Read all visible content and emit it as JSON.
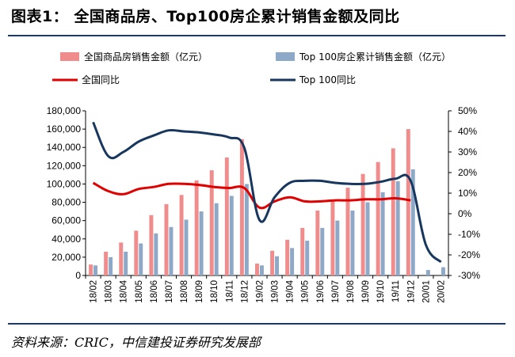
{
  "header": {
    "title": "图表1：   全国商品房、Top100房企累计销售金额及同比"
  },
  "footer": {
    "source": "资料来源：CRIC，中信建投证券研究发展部"
  },
  "colors": {
    "national_bar": "#f08c8c",
    "top100_bar": "#8ea9c8",
    "national_line": "#e00000",
    "top100_line": "#17375e"
  },
  "chart_data": {
    "type": "bar",
    "categories": [
      "18/02",
      "18/03",
      "18/04",
      "18/05",
      "18/06",
      "18/07",
      "18/08",
      "18/09",
      "18/10",
      "18/11",
      "18/12",
      "19/02",
      "19/03",
      "19/04",
      "19/05",
      "19/06",
      "19/07",
      "19/08",
      "19/09",
      "19/10",
      "19/11",
      "19/12",
      "20/01",
      "20/02"
    ],
    "series": [
      {
        "name": "全国商品房销售金额（亿元）",
        "kind": "bar",
        "axis": "left",
        "values": [
          12000,
          26000,
          36000,
          49000,
          66000,
          78000,
          88000,
          104000,
          115000,
          129000,
          149000,
          13000,
          27000,
          39000,
          52000,
          71000,
          82000,
          96000,
          111000,
          124000,
          139000,
          160000,
          null,
          null
        ]
      },
      {
        "name": "Top 100房企累计销售金额（亿元）",
        "kind": "bar",
        "axis": "left",
        "values": [
          11000,
          20000,
          26000,
          35000,
          46000,
          53000,
          61000,
          70000,
          79000,
          87000,
          100000,
          11000,
          21000,
          30000,
          38000,
          52000,
          60000,
          71000,
          80000,
          91000,
          103000,
          116000,
          6000,
          9000
        ]
      },
      {
        "name": "全国同比",
        "kind": "line",
        "axis": "right",
        "values": [
          15,
          11,
          9.5,
          12,
          13,
          14.5,
          14.5,
          14,
          13,
          12.5,
          12.5,
          3,
          6,
          8,
          6,
          6,
          6.5,
          6.5,
          7,
          7,
          7.5,
          6.5,
          null,
          null
        ]
      },
      {
        "name": "Top 100同比",
        "kind": "line",
        "axis": "right",
        "values": [
          44.5,
          28,
          30,
          35,
          38,
          40.5,
          40,
          39.5,
          38.5,
          37,
          32,
          -3,
          8,
          15,
          16,
          16,
          15,
          14.5,
          14.5,
          15.5,
          17,
          16,
          -15,
          -23.5
        ]
      }
    ],
    "left_axis": {
      "ylim": [
        0,
        180000
      ],
      "ticks": [
        "0",
        "20,000",
        "40,000",
        "60,000",
        "80,000",
        "100,000",
        "120,000",
        "140,000",
        "160,000",
        "180,000"
      ]
    },
    "right_axis": {
      "ylim": [
        -30,
        50
      ],
      "ticks": [
        "-30%",
        "-20%",
        "-10%",
        "0%",
        "10%",
        "20%",
        "30%",
        "40%",
        "50%"
      ]
    },
    "grid": false,
    "legend_placement": "top"
  }
}
